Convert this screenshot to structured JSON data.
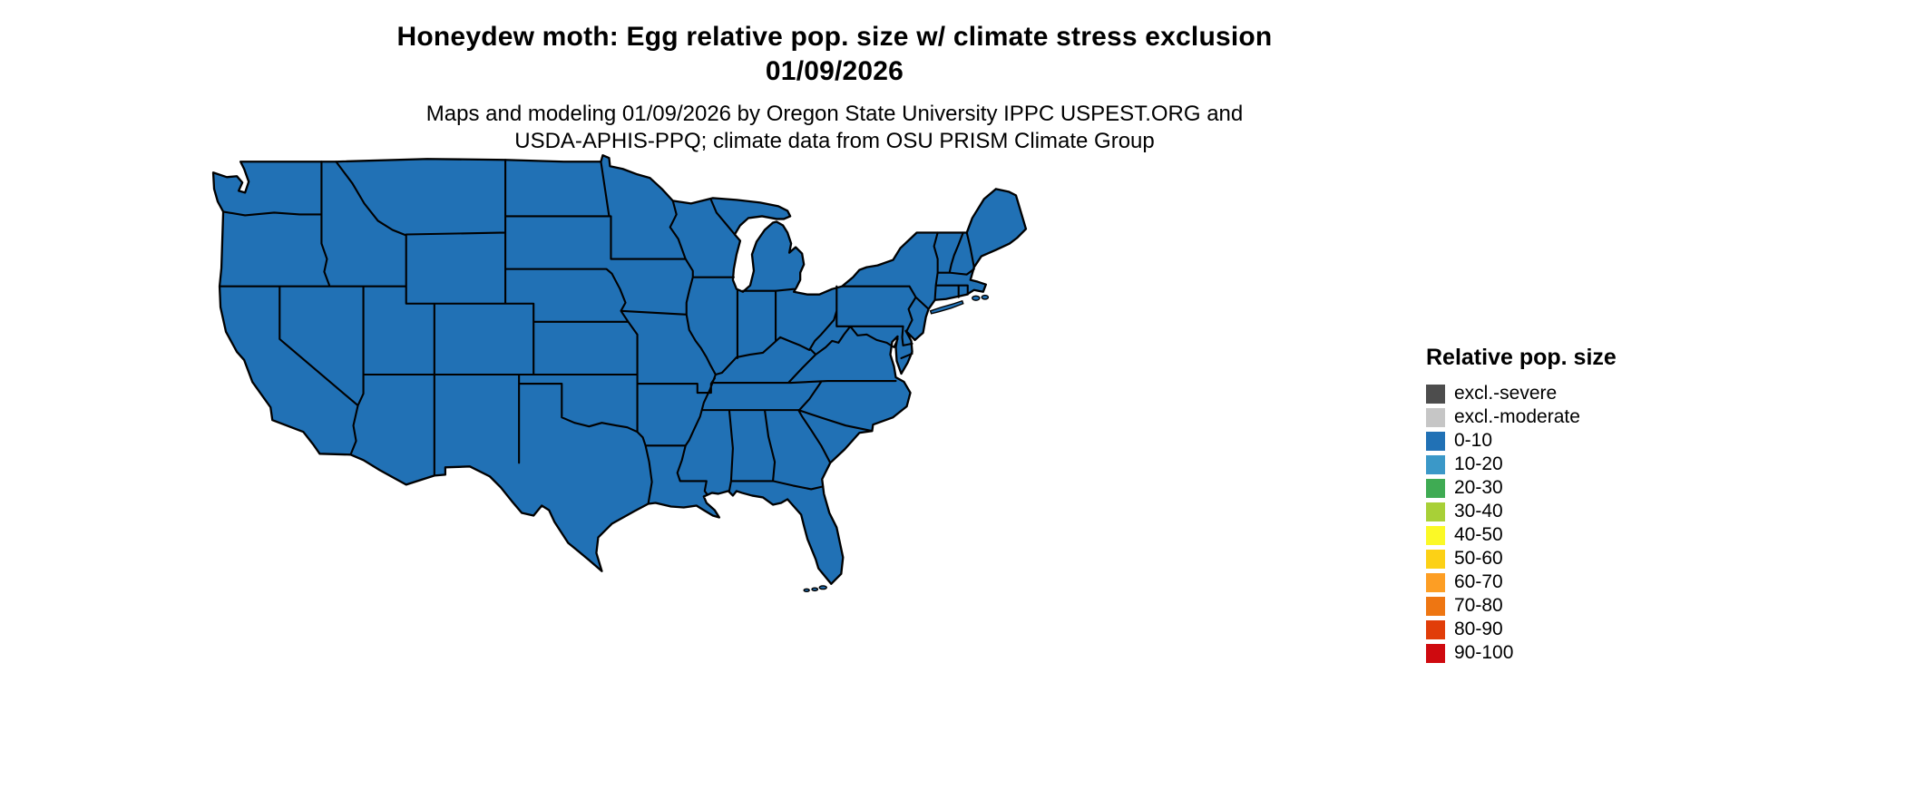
{
  "title": {
    "line1": "Honeydew moth: Egg relative pop. size w/ climate stress exclusion",
    "line2": "01/09/2026"
  },
  "subtitle": {
    "line1": "Maps and modeling 01/09/2026 by Oregon State University IPPC USPEST.ORG and",
    "line2": "USDA-APHIS-PPQ; climate data from OSU PRISM Climate Group"
  },
  "legend": {
    "title": "Relative pop. size",
    "items": [
      {
        "label": "excl.-severe",
        "color": "#4d4d4d"
      },
      {
        "label": "excl.-moderate",
        "color": "#c6c6c6"
      },
      {
        "label": "0-10",
        "color": "#2171b5"
      },
      {
        "label": "10-20",
        "color": "#3b98c8"
      },
      {
        "label": "20-30",
        "color": "#3fab53"
      },
      {
        "label": "30-40",
        "color": "#a8d037"
      },
      {
        "label": "40-50",
        "color": "#fbf926"
      },
      {
        "label": "50-60",
        "color": "#fcd116"
      },
      {
        "label": "60-70",
        "color": "#fd9e24"
      },
      {
        "label": "70-80",
        "color": "#ee7612"
      },
      {
        "label": "80-90",
        "color": "#e13d09"
      },
      {
        "label": "90-100",
        "color": "#cf0a0f"
      }
    ]
  },
  "map": {
    "region": "Continental United States",
    "fill_class": "0-10",
    "fill_color": "#2171b5",
    "border_color": "#000000",
    "note": "All states shaded in the 0-10 relative population size class"
  }
}
